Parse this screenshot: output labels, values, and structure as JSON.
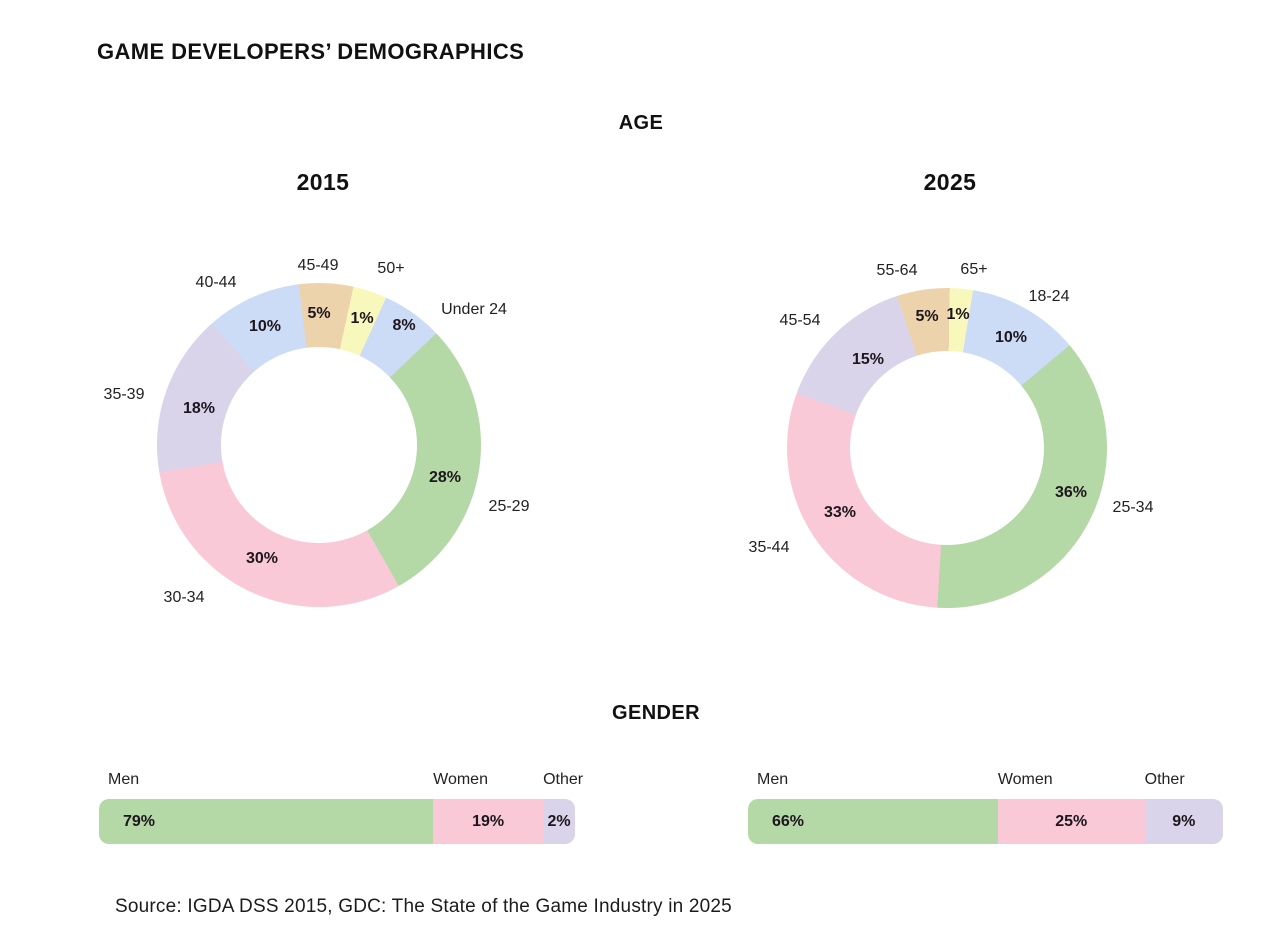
{
  "page_title": "GAME DEVELOPERS’ DEMOGRAPHICS",
  "age_section": {
    "heading": "AGE"
  },
  "gender_section": {
    "heading": "GENDER"
  },
  "source_text": "Source: IGDA DSS 2015, GDC: The State of the Game Industry in 2025",
  "colors": {
    "green": "#b4d8a6",
    "pink": "#f9c9d8",
    "lavender": "#d9d4ea",
    "blue": "#ccdbf6",
    "tan": "#edd3ab",
    "yellow": "#f8f8bd",
    "text": "#1a1a1a"
  },
  "chart_data": [
    {
      "type": "pie",
      "variant": "donut",
      "section": "AGE",
      "title": "2015",
      "legend_position": "outside-labels",
      "segments": [
        {
          "label": "Under 24",
          "value": 8,
          "color": "blue"
        },
        {
          "label": "25-29",
          "value": 28,
          "color": "green"
        },
        {
          "label": "30-34",
          "value": 30,
          "color": "pink"
        },
        {
          "label": "35-39",
          "value": 18,
          "color": "lavender"
        },
        {
          "label": "40-44",
          "value": 10,
          "color": "blue"
        },
        {
          "label": "45-49",
          "value": 5,
          "color": "tan"
        },
        {
          "label": "50+",
          "value": 1,
          "color": "yellow"
        }
      ]
    },
    {
      "type": "pie",
      "variant": "donut",
      "section": "AGE",
      "title": "2025",
      "legend_position": "outside-labels",
      "segments": [
        {
          "label": "18-24",
          "value": 10,
          "color": "blue"
        },
        {
          "label": "25-34",
          "value": 36,
          "color": "green"
        },
        {
          "label": "35-44",
          "value": 33,
          "color": "pink"
        },
        {
          "label": "45-54",
          "value": 15,
          "color": "lavender"
        },
        {
          "label": "55-64",
          "value": 5,
          "color": "tan"
        },
        {
          "label": "65+",
          "value": 1,
          "color": "yellow"
        }
      ]
    },
    {
      "type": "bar",
      "variant": "stacked-horizontal",
      "section": "GENDER",
      "title": "2015",
      "categories": [
        "Men",
        "Women",
        "Other"
      ],
      "values": [
        79,
        19,
        2
      ],
      "colors": [
        "green",
        "pink",
        "lavender"
      ],
      "value_format": "percent"
    },
    {
      "type": "bar",
      "variant": "stacked-horizontal",
      "section": "GENDER",
      "title": "2025",
      "categories": [
        "Men",
        "Women",
        "Other"
      ],
      "values": [
        66,
        25,
        9
      ],
      "colors": [
        "green",
        "pink",
        "lavender"
      ],
      "value_format": "percent"
    }
  ]
}
